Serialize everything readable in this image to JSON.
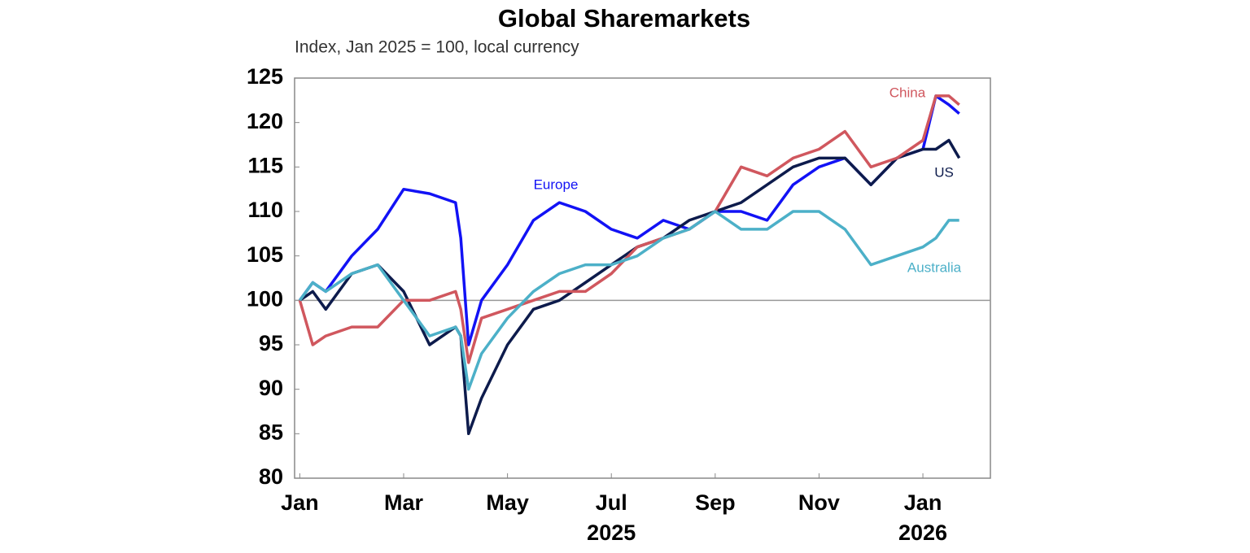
{
  "chart_data": {
    "type": "line",
    "title": "Global Sharemarkets",
    "subtitle": "Index, Jan 2025 = 100, local currency",
    "x": [
      0,
      0.25,
      0.5,
      1,
      1.5,
      2,
      2.5,
      3,
      3.1,
      3.25,
      3.5,
      4,
      4.5,
      5,
      5.5,
      6,
      6.5,
      7,
      7.5,
      8,
      8.5,
      9,
      9.5,
      10,
      10.5,
      11,
      11.5,
      12,
      12.25,
      12.5,
      12.7
    ],
    "series": [
      {
        "name": "Europe",
        "color": "#1212f5",
        "values": [
          100,
          102,
          101,
          105,
          108,
          112.5,
          112,
          111,
          107,
          95,
          100,
          104,
          109,
          111,
          110,
          108,
          107,
          109,
          108,
          110,
          110,
          109,
          113,
          115,
          116,
          113,
          116,
          117,
          123,
          122,
          121
        ]
      },
      {
        "name": "US",
        "color": "#0d1b4c",
        "values": [
          100,
          101,
          99,
          103,
          104,
          101,
          95,
          97,
          96,
          85,
          89,
          95,
          99,
          100,
          102,
          104,
          106,
          107,
          109,
          110,
          111,
          113,
          115,
          116,
          116,
          113,
          116,
          117,
          117,
          118,
          116
        ]
      },
      {
        "name": "China",
        "color": "#d0575e",
        "values": [
          100,
          95,
          96,
          97,
          97,
          100,
          100,
          101,
          99,
          93,
          98,
          99,
          100,
          101,
          101,
          103,
          106,
          107,
          108,
          110,
          115,
          114,
          116,
          117,
          119,
          115,
          116,
          118,
          123,
          123,
          122
        ]
      },
      {
        "name": "Australia",
        "color": "#4cb0c8",
        "values": [
          100,
          102,
          101,
          103,
          104,
          100,
          96,
          97,
          96,
          90,
          94,
          98,
          101,
          103,
          104,
          104,
          105,
          107,
          108,
          110,
          108,
          108,
          110,
          110,
          108,
          104,
          105,
          106,
          107,
          109,
          109
        ]
      }
    ],
    "xlim": [
      -0.1,
      13.3
    ],
    "xticks": [
      {
        "value": 0,
        "label": "Jan"
      },
      {
        "value": 2,
        "label": "Mar"
      },
      {
        "value": 4,
        "label": "May"
      },
      {
        "value": 6,
        "label": "Jul"
      },
      {
        "value": 8,
        "label": "Sep"
      },
      {
        "value": 10,
        "label": "Nov"
      },
      {
        "value": 12,
        "label": "Jan"
      }
    ],
    "year_labels": [
      {
        "value": 6,
        "label": "2025"
      },
      {
        "value": 12,
        "label": "2026"
      }
    ],
    "ylim": [
      80,
      125
    ],
    "yticks": [
      80,
      85,
      90,
      95,
      100,
      105,
      110,
      115,
      120,
      125
    ],
    "reference_line": 100,
    "grid": false
  }
}
